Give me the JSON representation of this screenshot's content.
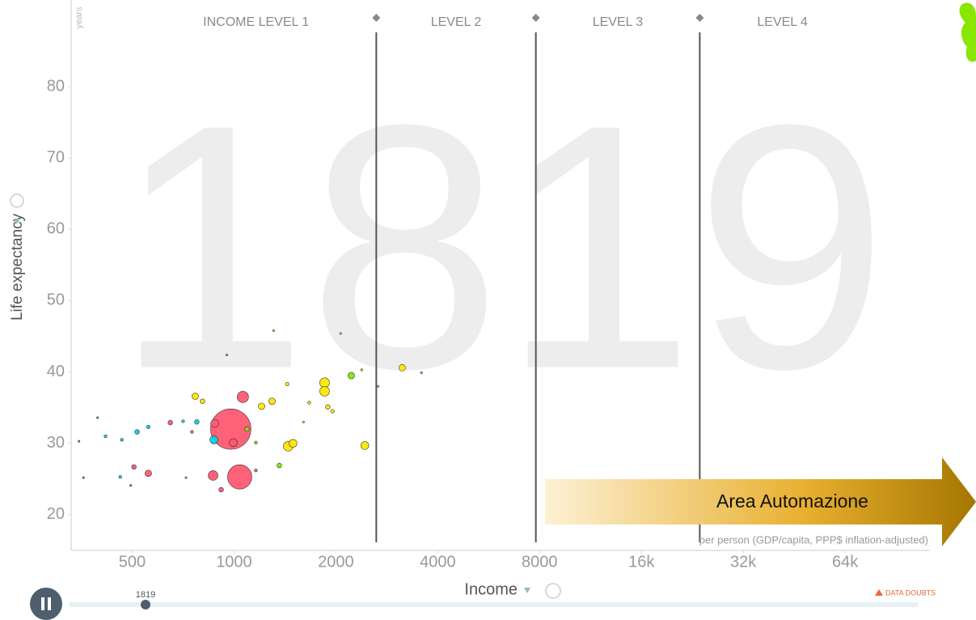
{
  "chart_data": {
    "type": "bubble",
    "year": "1819",
    "xlabel": "Income",
    "ylabel": "Life expectancy",
    "yunit": "years",
    "xunit": "per person (GDP/capita, PPP$ inflation-adjusted)",
    "levels": [
      "INCOME LEVEL 1",
      "LEVEL 2",
      "LEVEL 3",
      "LEVEL 4"
    ],
    "level_bounds": [
      2633,
      7800,
      23800
    ],
    "log_x": true,
    "xlim": [
      330,
      114000
    ],
    "ylim": [
      15,
      91
    ],
    "xticks": [
      500,
      1000,
      2000,
      4000,
      8000,
      {
        "value": 16000,
        "label": "16k"
      },
      {
        "value": 32000,
        "label": "32k"
      },
      {
        "value": 64000,
        "label": "64k"
      }
    ],
    "yticks": [
      20,
      30,
      40,
      50,
      60,
      70,
      80
    ],
    "series": [
      {
        "color": "#ff5872",
        "x": [
          978,
          1039,
          1062,
          867,
          877,
          558,
          648,
          506,
          916,
          995,
          1160,
          751,
          359,
          495
        ],
        "values": [
          32.0,
          25.3,
          36.5,
          25.5,
          32.8,
          25.8,
          32.9,
          26.7,
          23.5,
          30.1,
          26.2,
          31.6,
          25.2,
          24.1
        ],
        "size": [
          380,
          137,
          30,
          22,
          15,
          10,
          5,
          5,
          5,
          15,
          2,
          2,
          0.3,
          0.3
        ]
      },
      {
        "color": "#ffe700",
        "x": [
          1446,
          2436,
          1852,
          1852,
          3140,
          768,
          1295,
          1206,
          1893,
          1955,
          1494,
          807,
          1437,
          1668,
          1309,
          2065,
          2384,
          3580,
          2664,
          1604
        ],
        "values": [
          29.6,
          29.7,
          38.5,
          37.3,
          40.6,
          36.6,
          35.9,
          35.2,
          35.1,
          34.5,
          30.0,
          35.9,
          38.3,
          35.7,
          45.8,
          45.4,
          40.3,
          39.9,
          38.0,
          33.0
        ],
        "size": [
          22,
          15,
          22,
          22,
          10,
          10,
          10,
          10,
          5,
          3,
          15,
          5,
          3,
          2,
          0.3,
          0.3,
          1,
          1,
          0.3,
          0.3
        ]
      },
      {
        "color": "#00d5e9",
        "x": [
          872,
          776,
          517,
          558,
          466,
          417,
          707,
          461,
          348,
          395
        ],
        "values": [
          30.5,
          33.0,
          31.6,
          32.3,
          30.5,
          31.0,
          33.1,
          25.3,
          30.3,
          33.6
        ],
        "size": [
          15,
          5,
          5,
          3,
          2,
          2,
          2,
          2,
          0.5,
          0.3
        ]
      },
      {
        "color": "#7feb00",
        "x": [
          2221,
          1361,
          1092,
          1160,
          952,
          721
        ],
        "values": [
          39.5,
          26.9,
          32.0,
          30.1,
          42.4,
          25.2
        ],
        "size": [
          10,
          5,
          5,
          2,
          0.3,
          0.3
        ]
      }
    ]
  },
  "overlay": {
    "label": "Area Automazione"
  },
  "timeline": {
    "data_doubts": "DATA DOUBTS"
  }
}
